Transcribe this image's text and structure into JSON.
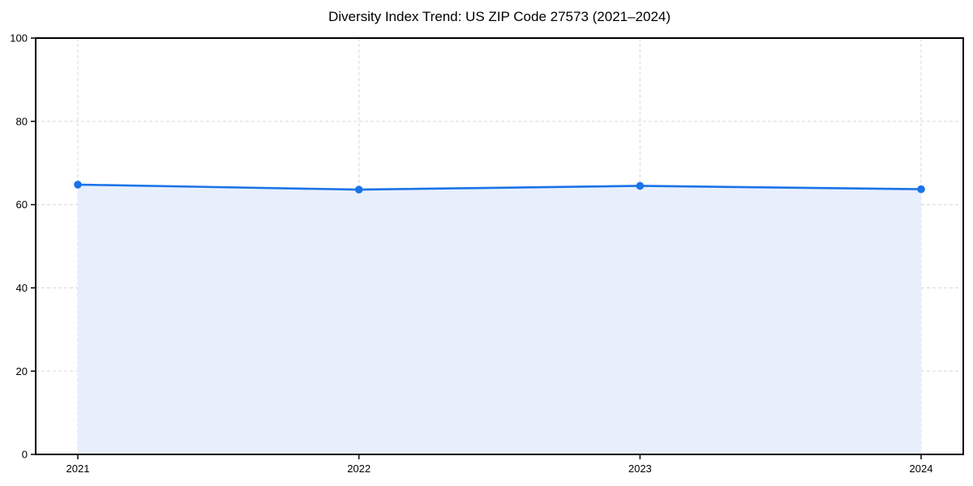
{
  "chart_data": {
    "type": "area",
    "title": "Diversity Index Trend: US ZIP Code 27573 (2021–2024)",
    "x": [
      2021,
      2022,
      2023,
      2024
    ],
    "categories": [
      "2021",
      "2022",
      "2023",
      "2024"
    ],
    "values": [
      64.8,
      63.6,
      64.5,
      63.7
    ],
    "xlim": [
      2020.85,
      2024.15
    ],
    "ylim": [
      0,
      100
    ],
    "yticks": [
      0,
      20,
      40,
      60,
      80,
      100
    ],
    "ytick_labels": [
      "0",
      "20",
      "40",
      "60",
      "80",
      "100"
    ],
    "xlabel": "",
    "ylabel": "",
    "grid": "dashed",
    "legend_position": "none",
    "line_color": "#1a73e8",
    "marker_color": "#1a73e8",
    "fill_color": "#e8effc",
    "grid_color": "#dedede",
    "axis_color": "#000000",
    "tick_text_color": "#000000",
    "background_color": "#ffffff"
  }
}
